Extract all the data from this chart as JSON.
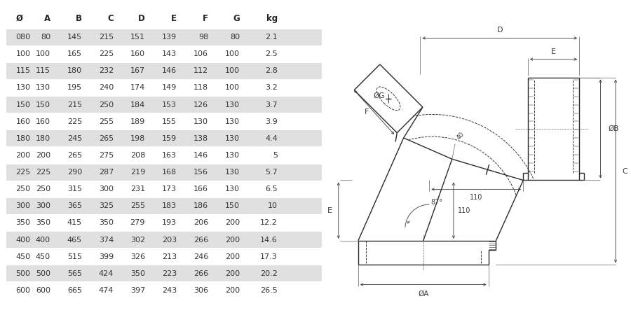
{
  "headers": [
    "Ø",
    "A",
    "B",
    "C",
    "D",
    "E",
    "F",
    "G",
    "kg"
  ],
  "rows": [
    [
      "080",
      80,
      145,
      215,
      151,
      139,
      98,
      80,
      2.1
    ],
    [
      "100",
      100,
      165,
      225,
      160,
      143,
      106,
      100,
      2.5
    ],
    [
      "115",
      115,
      180,
      232,
      167,
      146,
      112,
      100,
      2.8
    ],
    [
      "130",
      130,
      195,
      240,
      174,
      149,
      118,
      100,
      3.2
    ],
    [
      "150",
      150,
      215,
      250,
      184,
      153,
      126,
      130,
      3.7
    ],
    [
      "160",
      160,
      225,
      255,
      189,
      155,
      130,
      130,
      3.9
    ],
    [
      "180",
      180,
      245,
      265,
      198,
      159,
      138,
      130,
      4.4
    ],
    [
      "200",
      200,
      265,
      275,
      208,
      163,
      146,
      130,
      5
    ],
    [
      "225",
      225,
      290,
      287,
      219,
      168,
      156,
      130,
      5.7
    ],
    [
      "250",
      250,
      315,
      300,
      231,
      173,
      166,
      130,
      6.5
    ],
    [
      "300",
      300,
      365,
      325,
      255,
      183,
      186,
      150,
      10
    ],
    [
      "350",
      350,
      415,
      350,
      279,
      193,
      206,
      200,
      12.2
    ],
    [
      "400",
      400,
      465,
      374,
      302,
      203,
      266,
      200,
      14.6
    ],
    [
      "450",
      450,
      515,
      399,
      326,
      213,
      246,
      200,
      17.3
    ],
    [
      "500",
      500,
      565,
      424,
      350,
      223,
      266,
      200,
      20.2
    ],
    [
      "600",
      600,
      665,
      474,
      397,
      243,
      306,
      200,
      26.5
    ]
  ],
  "shaded_rows": [
    0,
    2,
    4,
    6,
    8,
    10,
    12,
    14
  ],
  "shade_color": "#e0e0e0",
  "bg_color": "#ffffff",
  "text_color": "#333333",
  "header_color": "#222222"
}
